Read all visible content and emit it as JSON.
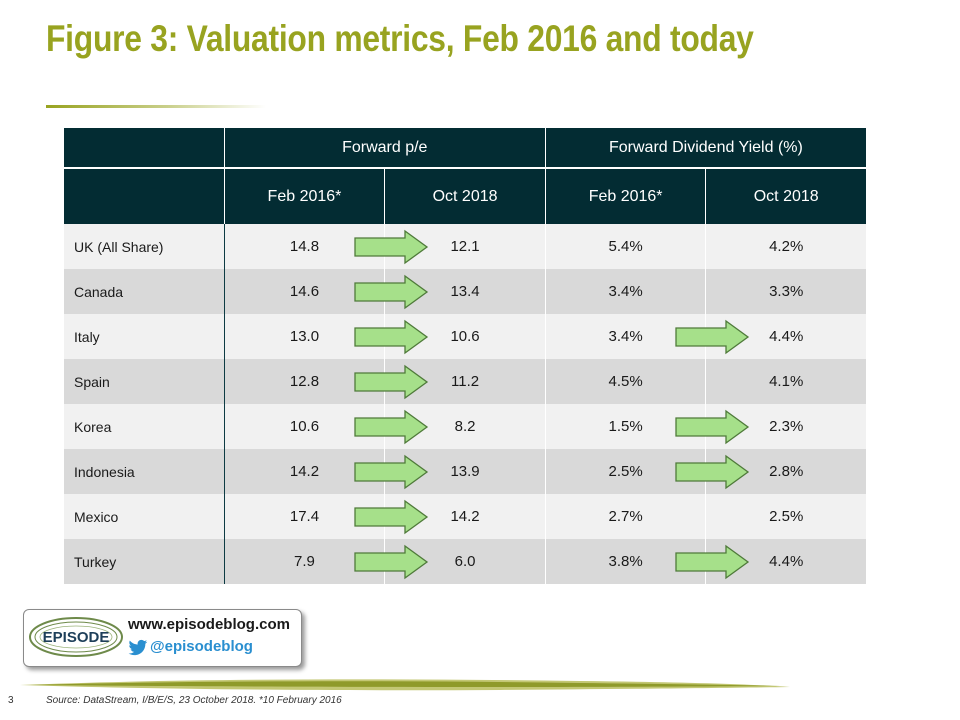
{
  "title": "Figure 3: Valuation metrics, Feb 2016 and today",
  "table": {
    "group_headers": [
      "Forward p/e",
      "Forward Dividend Yield (%)"
    ],
    "sub_headers": [
      "Feb 2016*",
      "Oct 2018",
      "Feb 2016*",
      "Oct 2018"
    ],
    "rows": [
      {
        "country": "UK (All Share)",
        "pe_feb16": "14.8",
        "pe_oct18": "12.1",
        "dy_feb16": "5.4%",
        "dy_oct18": "4.2%",
        "pe_arrow": true,
        "dy_arrow": false
      },
      {
        "country": "Canada",
        "pe_feb16": "14.6",
        "pe_oct18": "13.4",
        "dy_feb16": "3.4%",
        "dy_oct18": "3.3%",
        "pe_arrow": true,
        "dy_arrow": false
      },
      {
        "country": "Italy",
        "pe_feb16": "13.0",
        "pe_oct18": "10.6",
        "dy_feb16": "3.4%",
        "dy_oct18": "4.4%",
        "pe_arrow": true,
        "dy_arrow": true
      },
      {
        "country": "Spain",
        "pe_feb16": "12.8",
        "pe_oct18": "11.2",
        "dy_feb16": "4.5%",
        "dy_oct18": "4.1%",
        "pe_arrow": true,
        "dy_arrow": false
      },
      {
        "country": "Korea",
        "pe_feb16": "10.6",
        "pe_oct18": "8.2",
        "dy_feb16": "1.5%",
        "dy_oct18": "2.3%",
        "pe_arrow": true,
        "dy_arrow": true
      },
      {
        "country": "Indonesia",
        "pe_feb16": "14.2",
        "pe_oct18": "13.9",
        "dy_feb16": "2.5%",
        "dy_oct18": "2.8%",
        "pe_arrow": true,
        "dy_arrow": true
      },
      {
        "country": "Mexico",
        "pe_feb16": "17.4",
        "pe_oct18": "14.2",
        "dy_feb16": "2.7%",
        "dy_oct18": "2.5%",
        "pe_arrow": true,
        "dy_arrow": false
      },
      {
        "country": "Turkey",
        "pe_feb16": "7.9",
        "pe_oct18": "6.0",
        "dy_feb16": "3.8%",
        "dy_oct18": "4.4%",
        "pe_arrow": true,
        "dy_arrow": true
      }
    ]
  },
  "logo": {
    "brand": "EPISODE",
    "url": "www.episodeblog.com",
    "twitter": "@episodeblog"
  },
  "footer": {
    "page_number": "3",
    "source": "Source: DataStream, I/B/E/S, 23 October 2018. *10 February 2016"
  },
  "colors": {
    "title": "#98a320",
    "header_bg": "#032c33",
    "row_light": "#f1f1f1",
    "row_dark": "#d9d9d9",
    "arrow_fill": "#a6e08a",
    "arrow_stroke": "#4f7a3a",
    "twitter_blue": "#2a8fd0"
  },
  "icons": {
    "arrow": "right-arrow-icon",
    "twitter": "twitter-bird-icon"
  }
}
